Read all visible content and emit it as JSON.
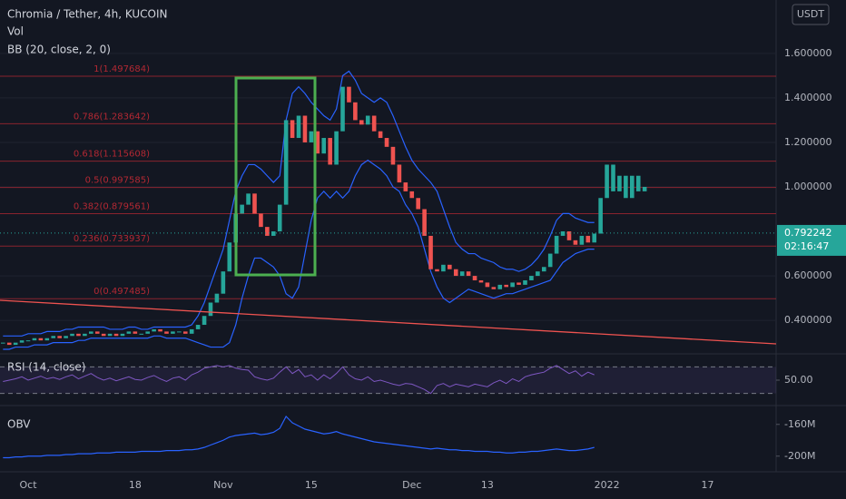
{
  "chart_data": {
    "type": "candlestick",
    "title": "Chromia / Tether, 4h, KUCOIN",
    "indicator_labels": [
      "Vol",
      "BB (20, close, 2, 0)"
    ],
    "currency": "USDT",
    "categories": [
      null,
      null,
      null,
      null,
      "Oct",
      null,
      null,
      null,
      null,
      null,
      null,
      null,
      null,
      null,
      null,
      null,
      null,
      null,
      null,
      null,
      null,
      "18",
      null,
      null,
      null,
      null,
      null,
      null,
      null,
      null,
      null,
      null,
      null,
      null,
      null,
      "Nov",
      null,
      null,
      null,
      null,
      null,
      null,
      null,
      null,
      null,
      null,
      null,
      null,
      null,
      "15",
      null,
      null,
      null,
      null,
      null,
      null,
      null,
      null,
      null,
      null,
      null,
      null,
      null,
      null,
      null,
      "Dec",
      null,
      null,
      null,
      null,
      null,
      null,
      null,
      null,
      null,
      null,
      null,
      "13",
      null,
      null,
      null,
      null,
      null,
      null,
      null,
      null,
      null,
      null,
      null,
      null,
      null,
      null,
      null,
      null,
      null,
      null,
      "2022",
      null,
      null,
      null,
      null,
      null,
      null,
      null,
      null,
      null,
      null,
      null,
      null,
      null,
      null,
      null,
      "17"
    ],
    "close": [
      0.3,
      0.29,
      0.3,
      0.31,
      0.31,
      0.32,
      0.31,
      0.32,
      0.33,
      0.32,
      0.33,
      0.34,
      0.33,
      0.34,
      0.35,
      0.34,
      0.33,
      0.34,
      0.33,
      0.34,
      0.35,
      0.34,
      0.34,
      0.35,
      0.36,
      0.35,
      0.34,
      0.35,
      0.35,
      0.34,
      0.36,
      0.38,
      0.42,
      0.48,
      0.52,
      0.62,
      0.75,
      0.88,
      0.92,
      0.97,
      0.88,
      0.82,
      0.78,
      0.8,
      0.92,
      1.3,
      1.22,
      1.32,
      1.2,
      1.25,
      1.15,
      1.22,
      1.1,
      1.25,
      1.45,
      1.38,
      1.3,
      1.28,
      1.32,
      1.25,
      1.22,
      1.18,
      1.1,
      1.02,
      0.98,
      0.95,
      0.9,
      0.78,
      0.63,
      0.62,
      0.65,
      0.63,
      0.6,
      0.62,
      0.6,
      0.58,
      0.57,
      0.55,
      0.54,
      0.56,
      0.55,
      0.57,
      0.56,
      0.58,
      0.6,
      0.62,
      0.64,
      0.7,
      0.78,
      0.8,
      0.76,
      0.74,
      0.78,
      0.75,
      0.79,
      null,
      null,
      null,
      null,
      null,
      null,
      null,
      null,
      null,
      null,
      null,
      null,
      null,
      null,
      null,
      null,
      null,
      null
    ],
    "projection": [
      null,
      null,
      null,
      null,
      null,
      null,
      null,
      null,
      null,
      null,
      null,
      null,
      null,
      null,
      null,
      null,
      null,
      null,
      null,
      null,
      null,
      null,
      null,
      null,
      null,
      null,
      null,
      null,
      null,
      null,
      null,
      null,
      null,
      null,
      null,
      null,
      null,
      null,
      null,
      null,
      null,
      null,
      null,
      null,
      null,
      null,
      null,
      null,
      null,
      null,
      null,
      null,
      null,
      null,
      null,
      null,
      null,
      null,
      null,
      null,
      null,
      null,
      null,
      null,
      null,
      null,
      null,
      null,
      null,
      null,
      null,
      null,
      null,
      null,
      null,
      null,
      null,
      null,
      null,
      null,
      null,
      null,
      null,
      null,
      null,
      null,
      null,
      null,
      null,
      null,
      null,
      null,
      null,
      null,
      0.79,
      0.95,
      1.1,
      0.98,
      1.05,
      0.95,
      1.05,
      0.98,
      1.0,
      null,
      null,
      null,
      null,
      null,
      null,
      null,
      null,
      null,
      null
    ],
    "bb_upper": [
      0.33,
      0.33,
      0.33,
      0.33,
      0.34,
      0.34,
      0.34,
      0.35,
      0.35,
      0.35,
      0.36,
      0.36,
      0.37,
      0.37,
      0.37,
      0.37,
      0.37,
      0.36,
      0.36,
      0.36,
      0.37,
      0.37,
      0.36,
      0.36,
      0.37,
      0.37,
      0.37,
      0.37,
      0.37,
      0.37,
      0.38,
      0.42,
      0.48,
      0.56,
      0.64,
      0.72,
      0.85,
      0.98,
      1.05,
      1.1,
      1.1,
      1.08,
      1.05,
      1.02,
      1.05,
      1.3,
      1.42,
      1.45,
      1.42,
      1.38,
      1.35,
      1.32,
      1.3,
      1.35,
      1.5,
      1.52,
      1.48,
      1.42,
      1.4,
      1.38,
      1.4,
      1.38,
      1.32,
      1.25,
      1.18,
      1.12,
      1.08,
      1.05,
      1.02,
      0.98,
      0.9,
      0.82,
      0.75,
      0.72,
      0.7,
      0.7,
      0.68,
      0.67,
      0.66,
      0.64,
      0.63,
      0.63,
      0.62,
      0.63,
      0.65,
      0.68,
      0.72,
      0.78,
      0.85,
      0.88,
      0.88,
      0.86,
      0.85,
      0.84,
      0.84,
      null,
      null,
      null,
      null,
      null,
      null,
      null,
      null,
      null,
      null,
      null,
      null,
      null,
      null,
      null,
      null,
      null,
      null
    ],
    "bb_lower": [
      0.27,
      0.27,
      0.28,
      0.28,
      0.28,
      0.29,
      0.29,
      0.29,
      0.3,
      0.3,
      0.3,
      0.3,
      0.31,
      0.31,
      0.32,
      0.32,
      0.32,
      0.32,
      0.32,
      0.32,
      0.32,
      0.32,
      0.32,
      0.32,
      0.33,
      0.33,
      0.32,
      0.32,
      0.32,
      0.32,
      0.31,
      0.3,
      0.29,
      0.28,
      0.28,
      0.28,
      0.3,
      0.38,
      0.5,
      0.6,
      0.68,
      0.68,
      0.66,
      0.64,
      0.6,
      0.52,
      0.5,
      0.55,
      0.7,
      0.85,
      0.95,
      0.98,
      0.95,
      0.98,
      0.95,
      0.98,
      1.05,
      1.1,
      1.12,
      1.1,
      1.08,
      1.05,
      1.0,
      0.98,
      0.92,
      0.88,
      0.82,
      0.72,
      0.62,
      0.55,
      0.5,
      0.48,
      0.5,
      0.52,
      0.54,
      0.53,
      0.52,
      0.51,
      0.5,
      0.51,
      0.52,
      0.52,
      0.53,
      0.54,
      0.55,
      0.56,
      0.57,
      0.58,
      0.62,
      0.66,
      0.68,
      0.7,
      0.71,
      0.72,
      0.72,
      null,
      null,
      null,
      null,
      null,
      null,
      null,
      null,
      null,
      null,
      null,
      null,
      null,
      null,
      null,
      null,
      null,
      null
    ],
    "up_color": "#26a69a",
    "down_color": "#ef5350",
    "bb_color": "#2962ff",
    "ylim": [
      0.27,
      1.84
    ],
    "yticks": [
      {
        "value": 0.4,
        "label": "0.400000"
      },
      {
        "value": 0.6,
        "label": "0.600000"
      },
      {
        "value": 1.0,
        "label": "1.000000"
      },
      {
        "value": 1.2,
        "label": "1.200000"
      },
      {
        "value": 1.4,
        "label": "1.400000"
      },
      {
        "value": 1.6,
        "label": "1.600000"
      }
    ],
    "grid": true,
    "fib_levels": [
      {
        "value": 1.497684,
        "label": "1(1.497684)"
      },
      {
        "value": 1.283642,
        "label": "0.786(1.283642)"
      },
      {
        "value": 1.115608,
        "label": "0.618(1.115608)"
      },
      {
        "value": 0.997585,
        "label": "0.5(0.997585)"
      },
      {
        "value": 0.879561,
        "label": "0.382(0.879561)"
      },
      {
        "value": 0.733937,
        "label": "0.236(0.733937)"
      },
      {
        "value": 0.497485,
        "label": "0(0.497485)"
      }
    ],
    "fib_color": "#b22833",
    "last_price": 0.792242,
    "countdown": "02:16:47",
    "rsi": {
      "title": "RSI (14, close)",
      "color": "#7e57c2",
      "ylim": [
        20,
        80
      ],
      "yticks": [
        {
          "value": 50,
          "label": "50.00"
        }
      ],
      "levels": [
        30,
        70
      ],
      "values": [
        48,
        50,
        52,
        55,
        50,
        53,
        56,
        52,
        54,
        51,
        55,
        58,
        52,
        56,
        60,
        54,
        50,
        53,
        49,
        52,
        55,
        51,
        50,
        54,
        57,
        52,
        48,
        53,
        55,
        50,
        58,
        62,
        68,
        70,
        72,
        70,
        72,
        68,
        66,
        65,
        55,
        52,
        50,
        53,
        62,
        70,
        60,
        66,
        55,
        58,
        50,
        58,
        52,
        60,
        70,
        58,
        52,
        50,
        55,
        48,
        50,
        47,
        44,
        42,
        45,
        44,
        40,
        36,
        30,
        42,
        45,
        40,
        44,
        42,
        40,
        44,
        42,
        40,
        46,
        50,
        45,
        52,
        48,
        55,
        58,
        60,
        62,
        68,
        72,
        66,
        60,
        64,
        56,
        62,
        58,
        null,
        null,
        null,
        null,
        null,
        null,
        null,
        null,
        null,
        null,
        null,
        null,
        null,
        null,
        null,
        null,
        null,
        null
      ]
    },
    "obv": {
      "title": "OBV",
      "color": "#2962ff",
      "ylim": [
        -214000000,
        -142000000
      ],
      "yticks": [
        {
          "value": -160000000,
          "label": "-160M"
        },
        {
          "value": -200000000,
          "label": "-200M"
        }
      ],
      "values": [
        -202000000,
        -202000000,
        -201000000,
        -201000000,
        -200000000,
        -200000000,
        -200000000,
        -199000000,
        -199000000,
        -199000000,
        -198000000,
        -198000000,
        -197000000,
        -197000000,
        -197000000,
        -196000000,
        -196000000,
        -196000000,
        -195000000,
        -195000000,
        -195000000,
        -195000000,
        -194000000,
        -194000000,
        -194000000,
        -194000000,
        -193000000,
        -193000000,
        -193000000,
        -192000000,
        -192000000,
        -191000000,
        -189000000,
        -186000000,
        -183000000,
        -180000000,
        -176000000,
        -174000000,
        -173000000,
        -172000000,
        -171000000,
        -173000000,
        -172000000,
        -170000000,
        -165000000,
        -150000000,
        -158000000,
        -162000000,
        -166000000,
        -168000000,
        -170000000,
        -172000000,
        -171000000,
        -169000000,
        -172000000,
        -174000000,
        -176000000,
        -178000000,
        -180000000,
        -182000000,
        -183000000,
        -184000000,
        -185000000,
        -186000000,
        -187000000,
        -188000000,
        -189000000,
        -190000000,
        -191000000,
        -190000000,
        -191000000,
        -192000000,
        -192000000,
        -193000000,
        -193000000,
        -194000000,
        -194000000,
        -194000000,
        -195000000,
        -195000000,
        -196000000,
        -196000000,
        -195000000,
        -195000000,
        -194000000,
        -194000000,
        -193000000,
        -192000000,
        -191000000,
        -192000000,
        -193000000,
        -193000000,
        -192000000,
        -191000000,
        -189000000,
        null,
        null,
        null,
        null,
        null,
        null,
        null,
        null,
        null,
        null,
        null,
        null,
        null,
        null,
        null,
        null,
        null,
        null
      ]
    }
  }
}
